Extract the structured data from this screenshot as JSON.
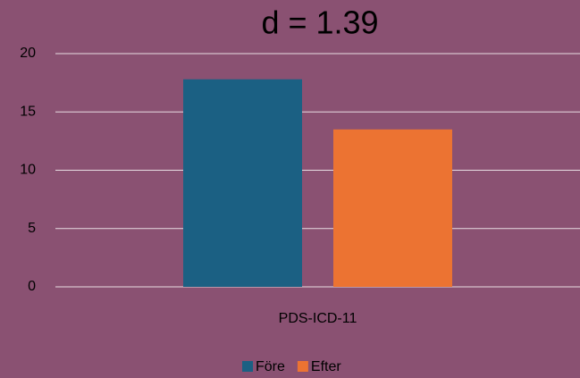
{
  "chart_data": {
    "type": "bar",
    "title": "d = 1.39",
    "categories": [
      "PDS-ICD-11"
    ],
    "series": [
      {
        "name": "Före",
        "color": "#1b6083",
        "values": [
          17.8
        ]
      },
      {
        "name": "Efter",
        "color": "#ec7332",
        "values": [
          13.5
        ]
      }
    ],
    "ylim": [
      0,
      20
    ],
    "yticks": [
      0,
      5,
      10,
      15,
      20
    ],
    "grid": true,
    "legend": "bottom"
  }
}
